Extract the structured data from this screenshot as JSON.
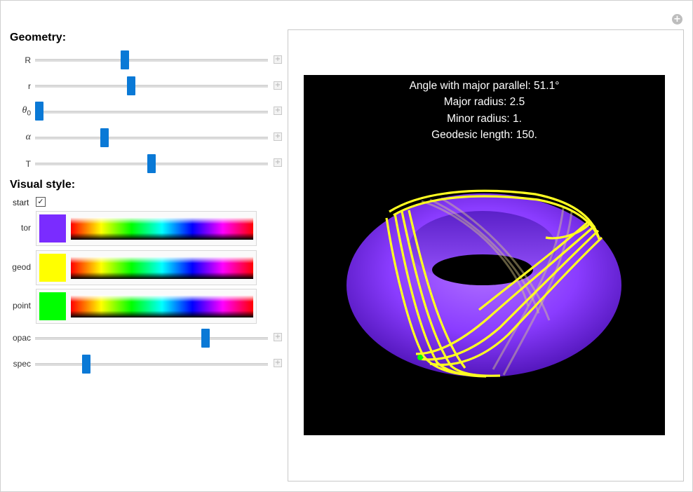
{
  "sections": {
    "geometry": "Geometry:",
    "visual": "Visual style:"
  },
  "sliders": {
    "R": {
      "label": "R",
      "value": 0.38
    },
    "r": {
      "label": "r",
      "value": 0.41
    },
    "theta0": {
      "label": "θ",
      "sub": "0",
      "value": 0.0
    },
    "alpha": {
      "label": "α",
      "value": 0.29
    },
    "T": {
      "label": "T",
      "value": 0.5
    },
    "opac": {
      "label": "opac",
      "value": 0.74
    },
    "spec": {
      "label": "spec",
      "value": 0.21
    }
  },
  "start": {
    "label": "start",
    "checked": true,
    "mark": "✓"
  },
  "colors": {
    "tor": {
      "label": "tor",
      "swatch": "#7a2cff"
    },
    "geod": {
      "label": "geod",
      "swatch": "#ffff00"
    },
    "point": {
      "label": "point",
      "swatch": "#00ff00"
    }
  },
  "plus_glyph": "+",
  "plot": {
    "lines": [
      "Angle with major parallel: 51.1°",
      "Major radius: 2.5",
      "Minor radius: 1.",
      "Geodesic length: 150."
    ],
    "torus_color": "#8a3cff",
    "geodesic_color": "#ffff22",
    "point_color": "#00ff00"
  }
}
